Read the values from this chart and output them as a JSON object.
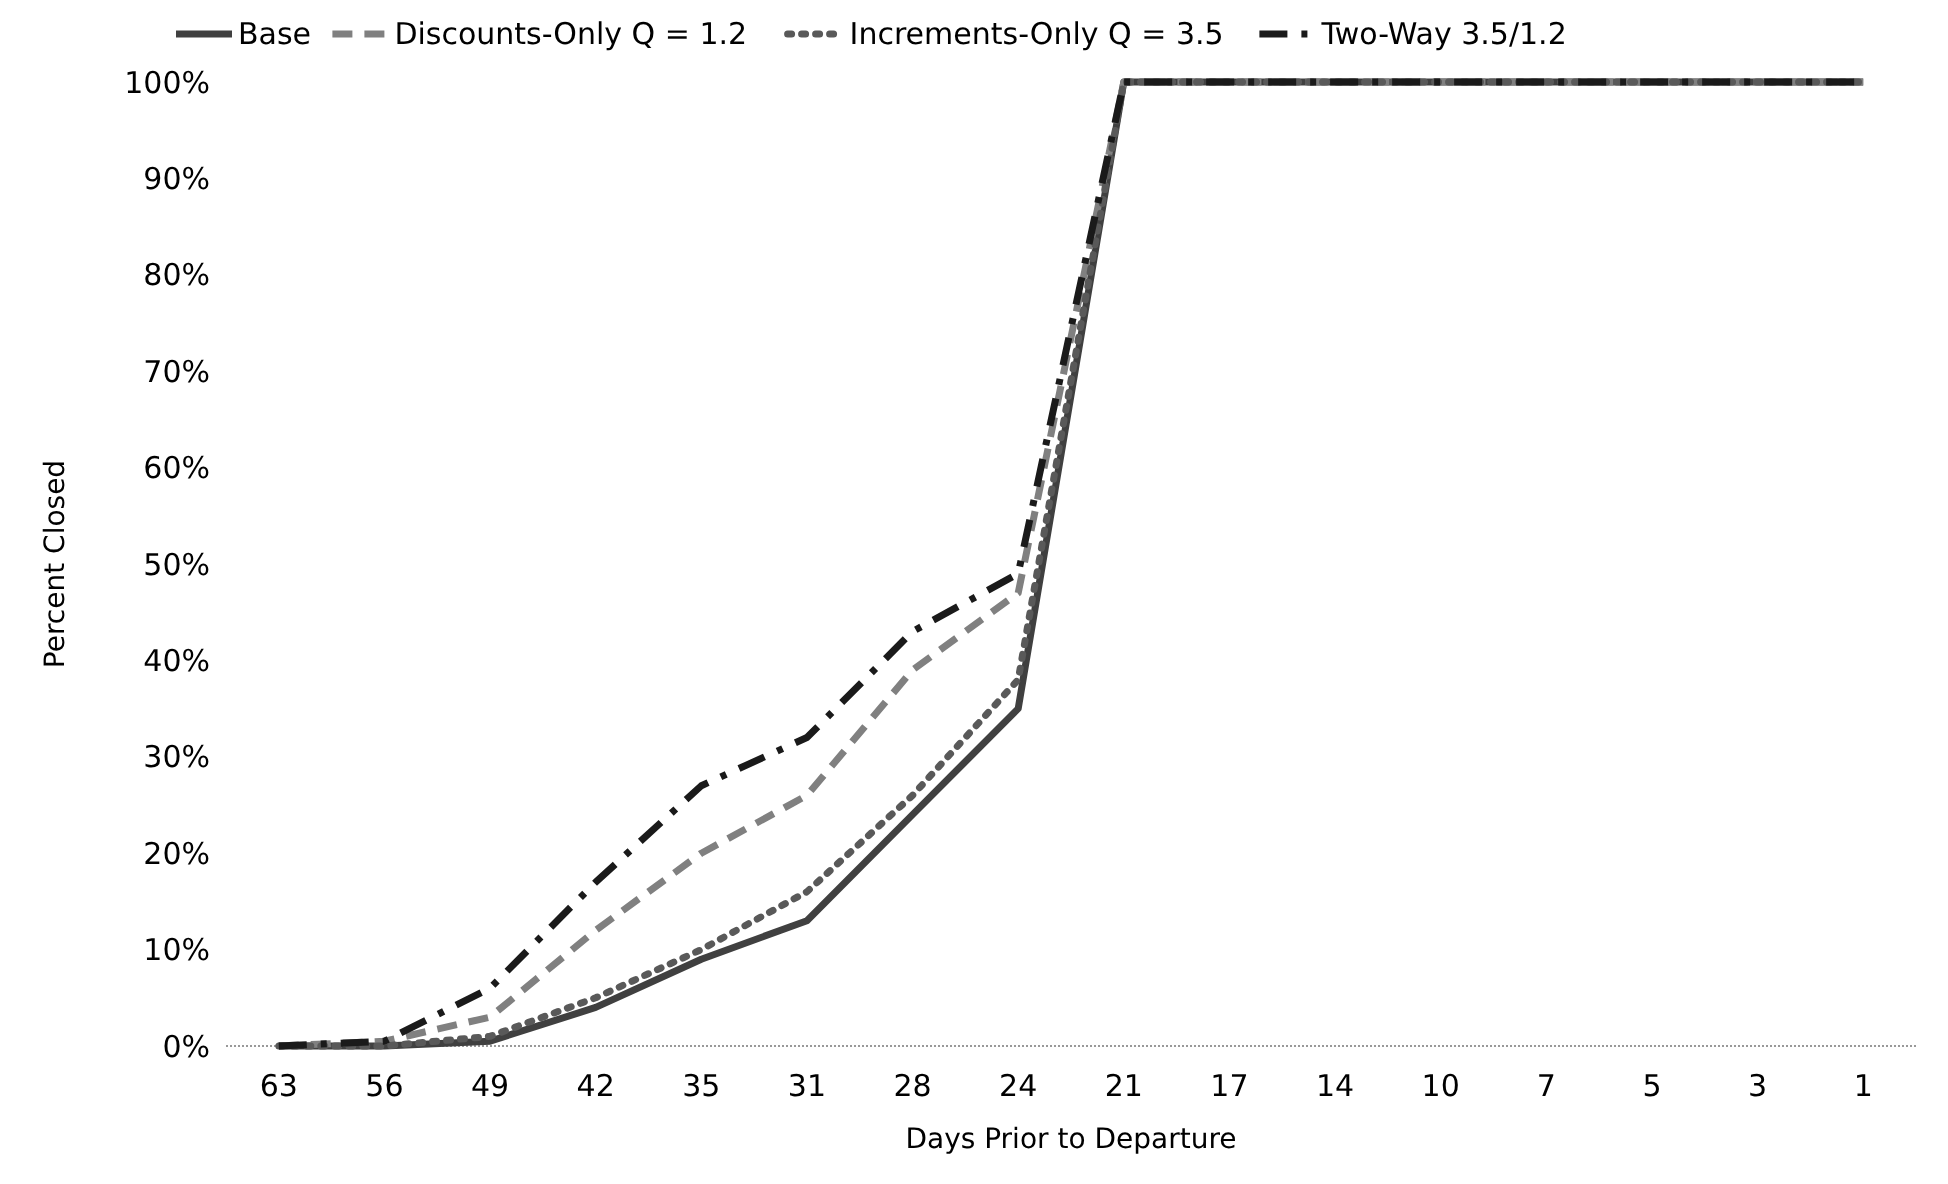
{
  "chart_data": {
    "type": "line",
    "xlabel": "Days Prior to Departure",
    "ylabel": "Percent Closed",
    "categories": [
      "63",
      "56",
      "49",
      "42",
      "35",
      "31",
      "28",
      "24",
      "21",
      "17",
      "14",
      "10",
      "7",
      "5",
      "3",
      "1"
    ],
    "ylim": [
      0,
      100
    ],
    "yticks": [
      {
        "value": 0,
        "label": "0%"
      },
      {
        "value": 10,
        "label": "10%"
      },
      {
        "value": 20,
        "label": "20%"
      },
      {
        "value": 30,
        "label": "30%"
      },
      {
        "value": 40,
        "label": "40%"
      },
      {
        "value": 50,
        "label": "50%"
      },
      {
        "value": 60,
        "label": "60%"
      },
      {
        "value": 70,
        "label": "70%"
      },
      {
        "value": 80,
        "label": "80%"
      },
      {
        "value": 90,
        "label": "90%"
      },
      {
        "value": 100,
        "label": "100%"
      }
    ],
    "grid": false,
    "legend": "top",
    "series": [
      {
        "name": "Base",
        "color": "#404040",
        "line_style": "solid",
        "values": [
          0,
          0,
          0.5,
          4,
          9,
          13,
          24,
          35,
          100,
          100,
          100,
          100,
          100,
          100,
          100,
          100
        ]
      },
      {
        "name": "Discounts-Only Q = 1.2",
        "color": "#808080",
        "line_style": "dashed",
        "values": [
          0,
          0.5,
          3,
          12,
          20,
          26,
          39,
          47,
          100,
          100,
          100,
          100,
          100,
          100,
          100,
          100
        ]
      },
      {
        "name": "Increments-Only Q = 3.5",
        "color": "#595959",
        "line_style": "dotted",
        "values": [
          0,
          0,
          1,
          5,
          10,
          16,
          26,
          38,
          100,
          100,
          100,
          100,
          100,
          100,
          100,
          100
        ]
      },
      {
        "name": "Two-Way 3.5/1.2",
        "color": "#1a1a1a",
        "line_style": "dashdot",
        "values": [
          0,
          0.5,
          6,
          17,
          27,
          32,
          43,
          49,
          100,
          100,
          100,
          100,
          100,
          100,
          100,
          100
        ]
      }
    ]
  }
}
